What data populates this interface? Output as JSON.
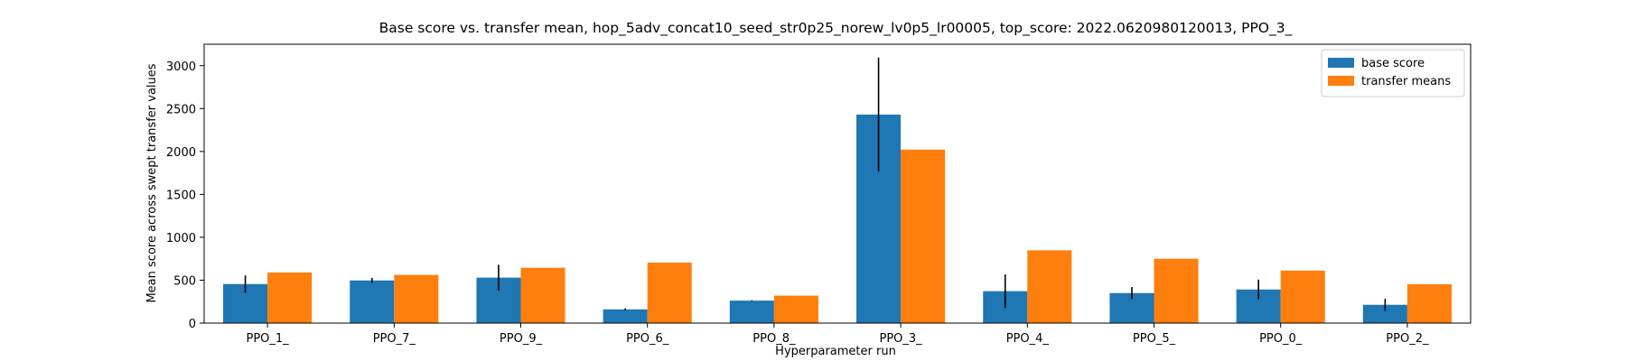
{
  "chart_data": {
    "type": "bar",
    "title": "Base score vs. transfer mean, hop_5adv_concat10_seed_str0p25_norew_lv0p5_lr00005, top_score: 2022.0620980120013, PPO_3_",
    "xlabel": "Hyperparameter run",
    "ylabel": "Mean score across swept transfer values",
    "categories": [
      "PPO_1_",
      "PPO_7_",
      "PPO_9_",
      "PPO_6_",
      "PPO_8_",
      "PPO_3_",
      "PPO_4_",
      "PPO_5_",
      "PPO_0_",
      "PPO_2_"
    ],
    "series": [
      {
        "name": "base score",
        "color": "#1f77b4",
        "values": [
          455,
          497,
          530,
          160,
          262,
          2430,
          372,
          350,
          392,
          213
        ],
        "error": [
          100,
          30,
          150,
          12,
          5,
          665,
          195,
          70,
          115,
          70
        ]
      },
      {
        "name": "transfer means",
        "color": "#ff7f0e",
        "values": [
          590,
          562,
          645,
          705,
          320,
          2022,
          848,
          750,
          612,
          453
        ]
      }
    ],
    "ylim": [
      0,
      3250
    ],
    "yticks": [
      0,
      500,
      1000,
      1500,
      2000,
      2500,
      3000
    ],
    "grid": false,
    "legend_position": "top-right"
  }
}
